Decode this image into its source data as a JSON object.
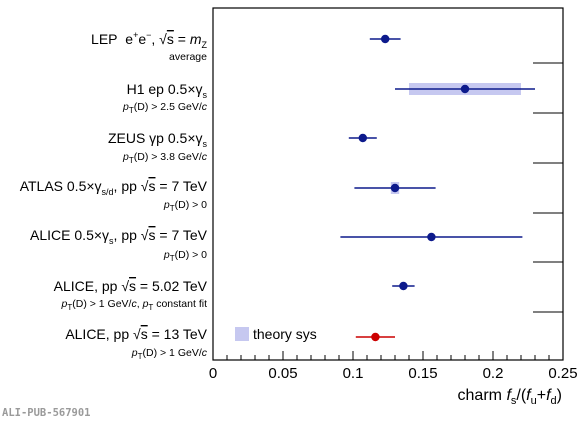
{
  "chart_data": {
    "type": "scatter",
    "xlabel": "charm f_s/(f_u+f_d)",
    "xlim": [
      0,
      0.25
    ],
    "x_ticks": [
      "0",
      "0.05",
      "0.1",
      "0.15",
      "0.2",
      "0.25"
    ],
    "x_tick_values": [
      0,
      0.05,
      0.1,
      0.15,
      0.2,
      0.25
    ],
    "legend": {
      "label": "theory sys",
      "color": "#c6c8f0",
      "placement": "bottom-left"
    },
    "points": [
      {
        "label": "LEP  e⁺e⁻, √s = m_Z",
        "sublabel": "average",
        "value": 0.123,
        "err_low": 0.011,
        "err_high": 0.011,
        "color": "#0d1a8c"
      },
      {
        "label": "H1 ep 0.5×γ_s",
        "sublabel": "p_T(D) > 2.5 GeV/c",
        "value": 0.18,
        "err_low": 0.05,
        "err_high": 0.05,
        "color": "#0d1a8c",
        "theory_band": [
          0.14,
          0.22
        ]
      },
      {
        "label": "ZEUS γp 0.5×γ_s",
        "sublabel": "p_T(D) > 3.8 GeV/c",
        "value": 0.107,
        "err_low": 0.01,
        "err_high": 0.01,
        "color": "#0d1a8c"
      },
      {
        "label": "ATLAS 0.5×γ_s/d, pp √s = 7 TeV",
        "sublabel": "p_T(D) > 0",
        "value": 0.13,
        "err_low": 0.029,
        "err_high": 0.029,
        "color": "#0d1a8c",
        "theory_band": [
          0.127,
          0.133
        ]
      },
      {
        "label": "ALICE 0.5×γ_s, pp √s = 7 TeV",
        "sublabel": "p_T(D) > 0",
        "value": 0.156,
        "err_low": 0.065,
        "err_high": 0.065,
        "color": "#0d1a8c"
      },
      {
        "label": "ALICE, pp √s = 5.02 TeV",
        "sublabel": "p_T(D) > 1 GeV/c, p_T constant fit",
        "value": 0.136,
        "err_low": 0.008,
        "err_high": 0.008,
        "color": "#0d1a8c"
      },
      {
        "label": "ALICE, pp √s = 13 TeV",
        "sublabel": "p_T(D) > 1 GeV/c",
        "value": 0.116,
        "err_low": 0.014,
        "err_high": 0.014,
        "color": "#cc0000"
      }
    ]
  },
  "watermark": "ALI-PUB-567901"
}
